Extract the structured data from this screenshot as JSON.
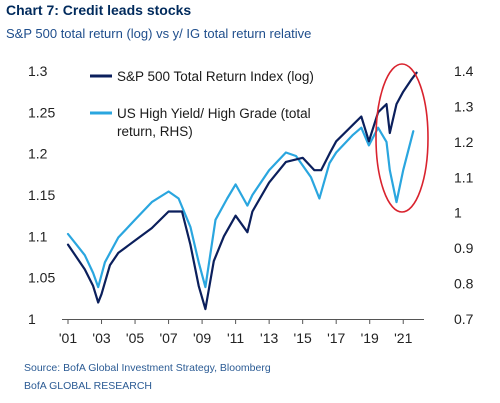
{
  "title": "Chart 7: Credit leads stocks",
  "subtitle": "S&P 500 total return (log) vs y/ IG total return relative",
  "source": "Source: BofA Global Investment Strategy, Bloomberg",
  "research": "BofA GLOBAL RESEARCH",
  "colors": {
    "sp500": "#0b1f5c",
    "hy_hg": "#2aa6df",
    "highlight": "#d9232e",
    "text": "#1f4e8c"
  },
  "chart_data": {
    "type": "line",
    "title": "Chart 7: Credit leads stocks",
    "subtitle": "S&P 500 total return (log) vs y/ IG total return relative",
    "x_ticks": [
      "'01",
      "'03",
      "'05",
      "'07",
      "'09",
      "'11",
      "'13",
      "'15",
      "'17",
      "'19",
      "'21"
    ],
    "xlim": [
      2001,
      2022
    ],
    "y_left": {
      "ticks": [
        "1.3",
        "1.25",
        "1.2",
        "1.15",
        "1.1",
        "1.05",
        "1"
      ],
      "ylim": [
        1.0,
        1.3
      ]
    },
    "y_right": {
      "ticks": [
        "1.4",
        "1.3",
        "1.2",
        "1.1",
        "1",
        "0.9",
        "0.8",
        "0.7"
      ],
      "ylim": [
        0.7,
        1.4
      ]
    },
    "legend": [
      {
        "label_lines": [
          "S&P 500 Total Return Index (log)"
        ]
      },
      {
        "label_lines": [
          "US High Yield/ High Grade (total",
          "return, RHS)"
        ]
      }
    ],
    "legend_placement": "top-left",
    "grid": false,
    "series": [
      {
        "name": "S&P 500 Total Return Index (log)",
        "axis": "left",
        "x": [
          2001.0,
          2001.5,
          2002.0,
          2002.5,
          2002.8,
          2003.0,
          2003.5,
          2004.0,
          2005.0,
          2006.0,
          2007.0,
          2007.8,
          2008.3,
          2008.8,
          2009.2,
          2009.7,
          2010.3,
          2011.0,
          2011.7,
          2012.0,
          2013.0,
          2014.0,
          2015.0,
          2015.7,
          2016.1,
          2016.6,
          2017.0,
          2018.0,
          2018.5,
          2018.95,
          2019.5,
          2020.0,
          2020.2,
          2020.6,
          2021.0,
          2021.5,
          2021.8
        ],
        "y": [
          1.09,
          1.075,
          1.06,
          1.04,
          1.02,
          1.03,
          1.065,
          1.08,
          1.095,
          1.11,
          1.13,
          1.13,
          1.09,
          1.04,
          1.012,
          1.07,
          1.1,
          1.125,
          1.105,
          1.13,
          1.165,
          1.19,
          1.195,
          1.18,
          1.18,
          1.2,
          1.215,
          1.235,
          1.245,
          1.215,
          1.25,
          1.26,
          1.225,
          1.26,
          1.275,
          1.29,
          1.298
        ]
      },
      {
        "name": "US High Yield/ High Grade (total return, RHS)",
        "axis": "right",
        "x": [
          2001.0,
          2001.5,
          2002.0,
          2002.5,
          2002.8,
          2003.2,
          2004.0,
          2005.0,
          2006.0,
          2007.0,
          2007.6,
          2008.3,
          2008.8,
          2009.2,
          2009.8,
          2010.5,
          2011.0,
          2011.7,
          2012.0,
          2013.0,
          2014.0,
          2014.6,
          2015.5,
          2016.0,
          2016.6,
          2017.0,
          2018.0,
          2018.5,
          2018.95,
          2019.5,
          2020.0,
          2020.2,
          2020.6,
          2021.0,
          2021.6
        ],
        "y": [
          0.94,
          0.91,
          0.88,
          0.83,
          0.79,
          0.86,
          0.93,
          0.98,
          1.03,
          1.06,
          1.04,
          0.96,
          0.86,
          0.79,
          0.98,
          1.04,
          1.08,
          1.02,
          1.05,
          1.12,
          1.17,
          1.16,
          1.1,
          1.04,
          1.14,
          1.17,
          1.22,
          1.24,
          1.19,
          1.24,
          1.2,
          1.12,
          1.03,
          1.12,
          1.23
        ]
      }
    ]
  }
}
